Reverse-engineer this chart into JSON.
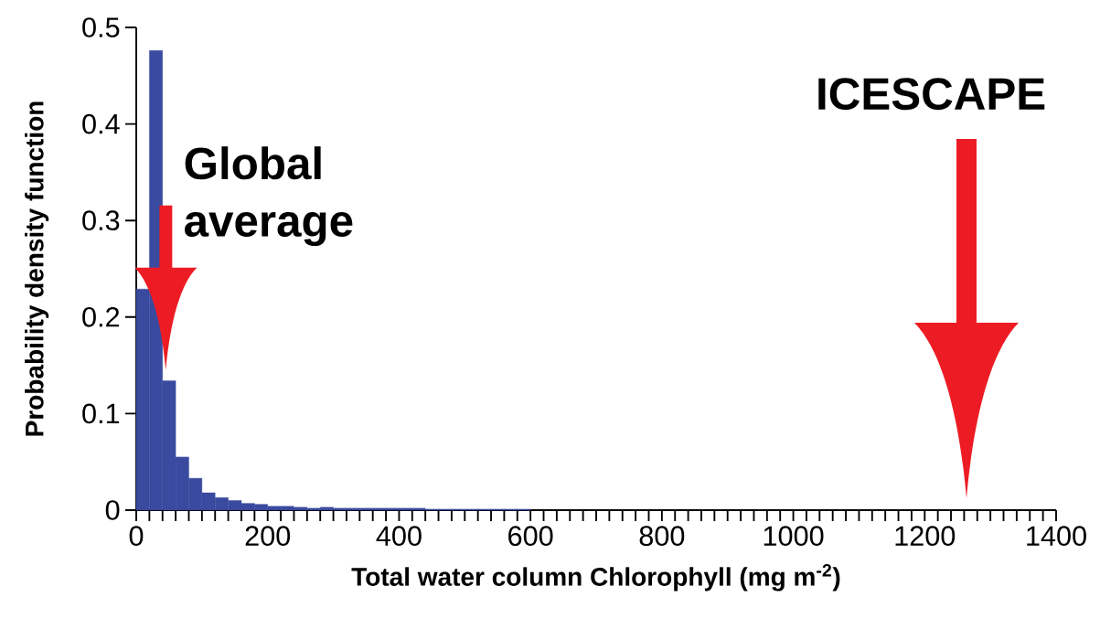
{
  "chart_data": {
    "type": "histogram",
    "xlabel": "Total water column Chlorophyll (mg m$^{-2}$)",
    "ylabel": "Probability density function",
    "bins": [
      0,
      20,
      40,
      60,
      80,
      100,
      120,
      140,
      160,
      180,
      200,
      220,
      240,
      260,
      280,
      300,
      320,
      340,
      360,
      380,
      400,
      420,
      440,
      460,
      480,
      500,
      520,
      540,
      560,
      580,
      600
    ],
    "values": [
      0.229,
      0.476,
      0.134,
      0.055,
      0.033,
      0.018,
      0.013,
      0.01,
      0.007,
      0.006,
      0.004,
      0.004,
      0.003,
      0.002,
      0.003,
      0.002,
      0.002,
      0.002,
      0.002,
      0.002,
      0.002,
      0.002,
      0.001,
      0.001,
      0.001,
      0.001,
      0.001,
      0.001,
      0.001,
      0.001
    ],
    "color": "#3a4a9e",
    "xlim": [
      0,
      1400
    ],
    "xticks": [
      0,
      200,
      400,
      600,
      800,
      1000,
      1200,
      1400
    ],
    "ylim": [
      0,
      0.5
    ],
    "yticks": [
      0,
      0.1,
      0.2,
      0.3,
      0.4,
      0.5
    ],
    "grid": false,
    "annotations": [
      {
        "text": "Global average",
        "x": 45,
        "y": 0.145
      },
      "ICESCAPE"
    ]
  }
}
